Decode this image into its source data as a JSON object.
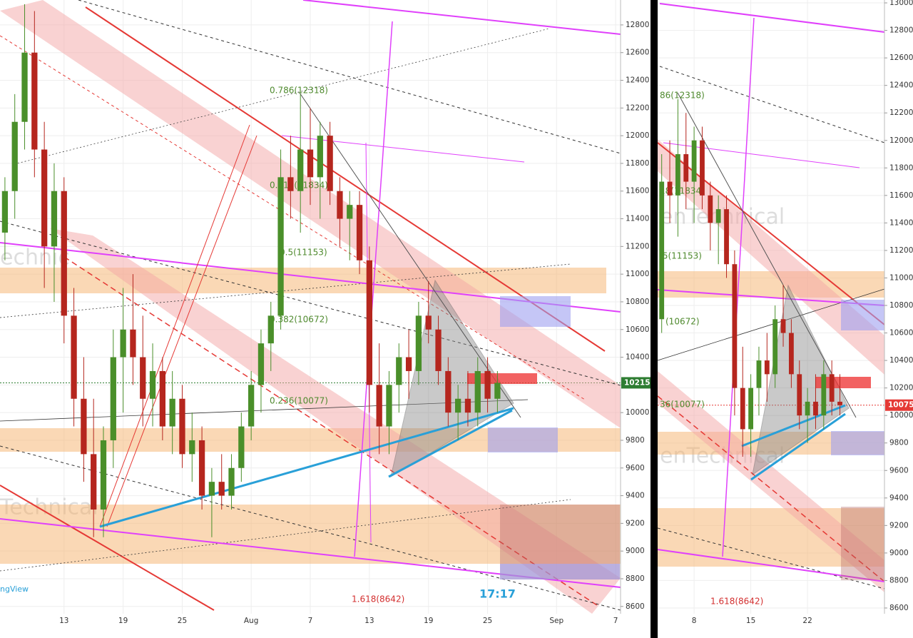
{
  "chart_data": [
    {
      "type": "candlestick",
      "up_color": "#4a8f2a",
      "down_color": "#b5261e",
      "grid": true,
      "categories": [
        null,
        null,
        null,
        null,
        null,
        null,
        "13",
        null,
        null,
        null,
        null,
        null,
        "19",
        null,
        null,
        null,
        null,
        null,
        "25",
        null,
        null,
        null,
        null,
        null,
        null,
        "Aug",
        null,
        null,
        null,
        null,
        null,
        "7",
        null,
        null,
        null,
        null,
        null,
        "13",
        null,
        null,
        null,
        null,
        null,
        "19",
        null,
        null,
        null,
        null,
        null,
        "25",
        null,
        null,
        null,
        null,
        null,
        null,
        "Sep",
        null,
        null,
        null,
        null,
        null,
        "7"
      ],
      "open": [
        11300,
        11600,
        12100,
        12600,
        11900,
        11200,
        11600,
        10700,
        10100,
        9700,
        9300,
        9800,
        10400,
        10600,
        10400,
        10100,
        10300,
        9900,
        10100,
        9700,
        9800,
        9400,
        9500,
        9400,
        9600,
        9900,
        10200,
        10500,
        10700,
        11700,
        11600,
        11900,
        11700,
        12000,
        11600,
        11400,
        11500,
        11100,
        10200,
        9900,
        10200,
        10400,
        10300,
        10700,
        10600,
        10300,
        10000,
        10100,
        10000,
        10300,
        10100,
        null,
        null,
        null,
        null,
        null,
        null,
        null,
        null,
        null,
        null,
        null,
        null
      ],
      "high": [
        11700,
        12300,
        12950,
        12900,
        12100,
        11800,
        11700,
        10900,
        10400,
        10100,
        9900,
        10600,
        10900,
        11000,
        10700,
        10500,
        10400,
        10300,
        10200,
        10000,
        9900,
        9600,
        9700,
        9700,
        10000,
        10300,
        10600,
        10800,
        11900,
        12000,
        12300,
        12200,
        12100,
        12100,
        11700,
        11600,
        11600,
        11200,
        10500,
        10300,
        10500,
        10600,
        10800,
        10950,
        10700,
        10400,
        10200,
        10300,
        10400,
        10400,
        10300,
        null,
        null,
        null,
        null,
        null,
        null,
        null,
        null,
        null,
        null,
        null,
        null
      ],
      "low": [
        11100,
        11400,
        11900,
        11700,
        10900,
        10800,
        10500,
        9900,
        9500,
        9100,
        9100,
        9600,
        10000,
        10200,
        9900,
        9900,
        9800,
        9700,
        9600,
        9500,
        9300,
        9100,
        9300,
        9300,
        9500,
        9800,
        10000,
        10300,
        10600,
        11400,
        11300,
        11500,
        11400,
        11500,
        11200,
        11100,
        11000,
        10000,
        9700,
        9700,
        10000,
        10100,
        10200,
        10500,
        10200,
        9900,
        9800,
        9900,
        9900,
        10000,
        10000,
        null,
        null,
        null,
        null,
        null,
        null,
        null,
        null,
        null,
        null,
        null,
        null
      ],
      "close": [
        11600,
        12100,
        12600,
        11900,
        11200,
        11600,
        10700,
        10100,
        9700,
        9300,
        9800,
        10400,
        10600,
        10400,
        10100,
        10300,
        9900,
        10100,
        9700,
        9800,
        9400,
        9500,
        9400,
        9600,
        9900,
        10200,
        10500,
        10700,
        11700,
        11600,
        11900,
        11700,
        12000,
        11600,
        11400,
        11500,
        11100,
        10200,
        9900,
        10200,
        10400,
        10300,
        10700,
        10600,
        10300,
        10000,
        10100,
        10000,
        10300,
        10100,
        10215,
        null,
        null,
        null,
        null,
        null,
        null,
        null,
        null,
        null,
        null,
        null,
        null
      ],
      "ylim": [
        8470,
        12980
      ],
      "yticks": [
        8600,
        8800,
        9000,
        9200,
        9400,
        9600,
        9800,
        10000,
        10200,
        10400,
        10600,
        10800,
        11000,
        11200,
        11400,
        11600,
        11800,
        12000,
        12200,
        12400,
        12600,
        12800
      ],
      "last_price": 10215,
      "last_price_color": "#2e7d32",
      "annotations": [
        "0.786(12318)",
        "0.618(11834)",
        "0.5(11153)",
        "0.382(10672)",
        "0.236(10077)",
        "1.618(8642)",
        "17:17",
        "ngView"
      ],
      "watermarks": [
        "echnic",
        "Technical"
      ]
    },
    {
      "type": "candlestick",
      "up_color": "#4a8f2a",
      "down_color": "#b5261e",
      "grid": true,
      "categories": [
        null,
        null,
        null,
        null,
        "8",
        null,
        null,
        null,
        null,
        null,
        null,
        "15",
        null,
        null,
        null,
        null,
        null,
        null,
        "22",
        null,
        null,
        null,
        null,
        null,
        null,
        null,
        null,
        null
      ],
      "open": [
        10700,
        11700,
        11600,
        11900,
        11700,
        12000,
        11600,
        11400,
        11500,
        11100,
        10200,
        9900,
        10200,
        10400,
        10300,
        10700,
        10600,
        10300,
        10000,
        10100,
        10000,
        10300,
        10100,
        null,
        null,
        null,
        null,
        null
      ],
      "high": [
        11900,
        12000,
        12300,
        12200,
        12100,
        12100,
        11700,
        11600,
        11600,
        11200,
        10500,
        10300,
        10500,
        10600,
        10800,
        10950,
        10700,
        10400,
        10200,
        10300,
        10400,
        10400,
        10300,
        null,
        null,
        null,
        null,
        null
      ],
      "low": [
        10600,
        11400,
        11300,
        11500,
        11400,
        11500,
        11200,
        11100,
        11000,
        10000,
        9700,
        9700,
        10000,
        10100,
        10200,
        10500,
        10200,
        9900,
        9800,
        9900,
        9900,
        10000,
        10000,
        null,
        null,
        null,
        null,
        null
      ],
      "close": [
        11700,
        11600,
        11900,
        11700,
        12000,
        11600,
        11400,
        11500,
        11100,
        10200,
        9900,
        10200,
        10400,
        10300,
        10700,
        10600,
        10300,
        10000,
        10100,
        10000,
        10300,
        10100,
        10075,
        null,
        null,
        null,
        null,
        null
      ],
      "ylim": [
        8496,
        13021
      ],
      "yticks": [
        8600,
        8800,
        9000,
        9200,
        9400,
        9600,
        9800,
        10000,
        10200,
        10400,
        10600,
        10800,
        11000,
        11200,
        11400,
        11600,
        11800,
        12000,
        12200,
        12400,
        12600,
        12800,
        13000
      ],
      "last_price": 10075,
      "last_price_color": "#e53935",
      "annotations": [
        "86(12318)",
        "18(11834)",
        ".5(11153)",
        "(10672)",
        "36(10077)",
        "1.618(8642)"
      ],
      "watermarks": [
        "enTechnical",
        "enTechnical"
      ]
    }
  ]
}
